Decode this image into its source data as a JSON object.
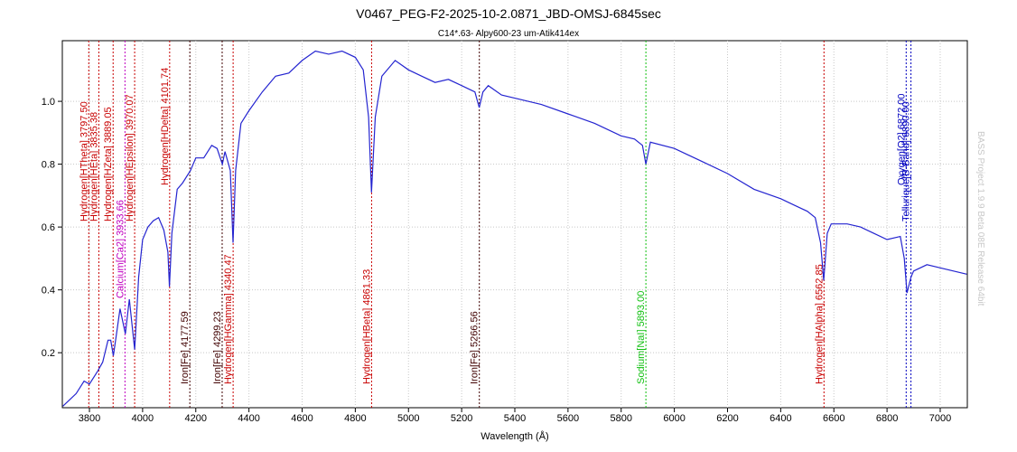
{
  "chart_data": {
    "type": "line",
    "title": "V0467_PEG-F2-2025-10-2.0871_JBD-OMSJ-6845sec",
    "subtitle": "C14*.63- Alpy600-23 um-Atik414ex",
    "x_label": "Wavelength (Å)",
    "watermark": "BASS Project 1.9.9 Beta 08E Release 64bit",
    "xlim": [
      3698,
      7102
    ],
    "ylim": [
      0.025,
      1.193
    ],
    "xticks": [
      3800,
      4000,
      4200,
      4400,
      4600,
      4800,
      5000,
      5200,
      5400,
      5600,
      5800,
      6000,
      6200,
      6400,
      6600,
      6800,
      7000
    ],
    "yticks": [
      0.2,
      0.4,
      0.6,
      0.8,
      {
        "value": 1,
        "label": "1.0"
      }
    ],
    "grid": true,
    "series": [
      {
        "color": "#2424d0",
        "x": [
          3700,
          3750,
          3780,
          3800,
          3830,
          3850,
          3870,
          3880,
          3890,
          3900,
          3915,
          3935,
          3950,
          3970,
          3985,
          4000,
          4020,
          4040,
          4060,
          4080,
          4095,
          4101,
          4110,
          4130,
          4150,
          4180,
          4200,
          4230,
          4260,
          4280,
          4300,
          4310,
          4330,
          4340,
          4350,
          4370,
          4400,
          4450,
          4500,
          4550,
          4600,
          4650,
          4700,
          4750,
          4800,
          4830,
          4850,
          4861,
          4875,
          4900,
          4950,
          5000,
          5050,
          5100,
          5150,
          5200,
          5250,
          5266,
          5280,
          5300,
          5350,
          5400,
          5450,
          5500,
          5600,
          5700,
          5800,
          5850,
          5880,
          5893,
          5910,
          6000,
          6100,
          6200,
          6300,
          6400,
          6450,
          6500,
          6530,
          6550,
          6562,
          6575,
          6590,
          6650,
          6700,
          6750,
          6800,
          6850,
          6865,
          6875,
          6890,
          6900,
          6950,
          7000,
          7050,
          7100
        ],
        "values": [
          0.03,
          0.07,
          0.11,
          0.1,
          0.14,
          0.17,
          0.24,
          0.24,
          0.19,
          0.25,
          0.34,
          0.26,
          0.37,
          0.21,
          0.44,
          0.56,
          0.6,
          0.62,
          0.63,
          0.59,
          0.52,
          0.41,
          0.58,
          0.72,
          0.74,
          0.78,
          0.82,
          0.82,
          0.86,
          0.85,
          0.8,
          0.84,
          0.78,
          0.55,
          0.78,
          0.93,
          0.97,
          1.03,
          1.08,
          1.09,
          1.13,
          1.16,
          1.15,
          1.16,
          1.14,
          1.1,
          0.95,
          0.71,
          0.95,
          1.08,
          1.13,
          1.1,
          1.08,
          1.06,
          1.07,
          1.05,
          1.03,
          0.98,
          1.03,
          1.05,
          1.02,
          1.01,
          1.0,
          0.99,
          0.96,
          0.93,
          0.89,
          0.88,
          0.86,
          0.8,
          0.87,
          0.85,
          0.81,
          0.77,
          0.72,
          0.69,
          0.67,
          0.65,
          0.63,
          0.55,
          0.43,
          0.58,
          0.61,
          0.61,
          0.6,
          0.58,
          0.56,
          0.57,
          0.5,
          0.39,
          0.44,
          0.46,
          0.48,
          0.47,
          0.46,
          0.45
        ]
      }
    ],
    "annotations": [
      {
        "x": 3797.5,
        "label": "Hydrogen[HTheta] 3797.50",
        "color": "#c80000"
      },
      {
        "x": 3835.38,
        "label": "Hydrogen[HEta] 3835.38",
        "color": "#c80000"
      },
      {
        "x": 3889.05,
        "label": "Hydrogen[HZeta] 3889.05",
        "color": "#c80000"
      },
      {
        "x": 3933.66,
        "label": "Calcium[Ca2] 3933.66",
        "color": "#c000c0"
      },
      {
        "x": 3970.07,
        "label": "Hydrogen[HEpsilon] 3970.07",
        "color": "#c80000"
      },
      {
        "x": 4101.74,
        "label": "Hydrogen[HDelta] 4101.74",
        "color": "#c80000"
      },
      {
        "x": 4177.59,
        "label": "Iron[Fe] 4177.59",
        "color": "#400000"
      },
      {
        "x": 4299.23,
        "label": "Iron[Fe] 4299.23",
        "color": "#400000"
      },
      {
        "x": 4340.47,
        "label": "Hydrogen[HGamma] 4340.47",
        "color": "#c80000"
      },
      {
        "x": 4861.33,
        "label": "Hydrogen[HBeta] 4861.33",
        "color": "#c80000"
      },
      {
        "x": 5266.56,
        "label": "Iron[Fe] 5266.56",
        "color": "#400000"
      },
      {
        "x": 5893.0,
        "label": "Sodium[NaI] 5893.00",
        "color": "#10c010"
      },
      {
        "x": 6562.85,
        "label": "Hydrogen[HAlpha] 6562.85",
        "color": "#c80000"
      },
      {
        "x": 6872.0,
        "label": "Oxygen[O2] 6872.00",
        "color": "#0000c0"
      },
      {
        "x": 6890.0,
        "label": "Tellurique[B-Band] 6890.00",
        "color": "#0000c0"
      }
    ]
  }
}
